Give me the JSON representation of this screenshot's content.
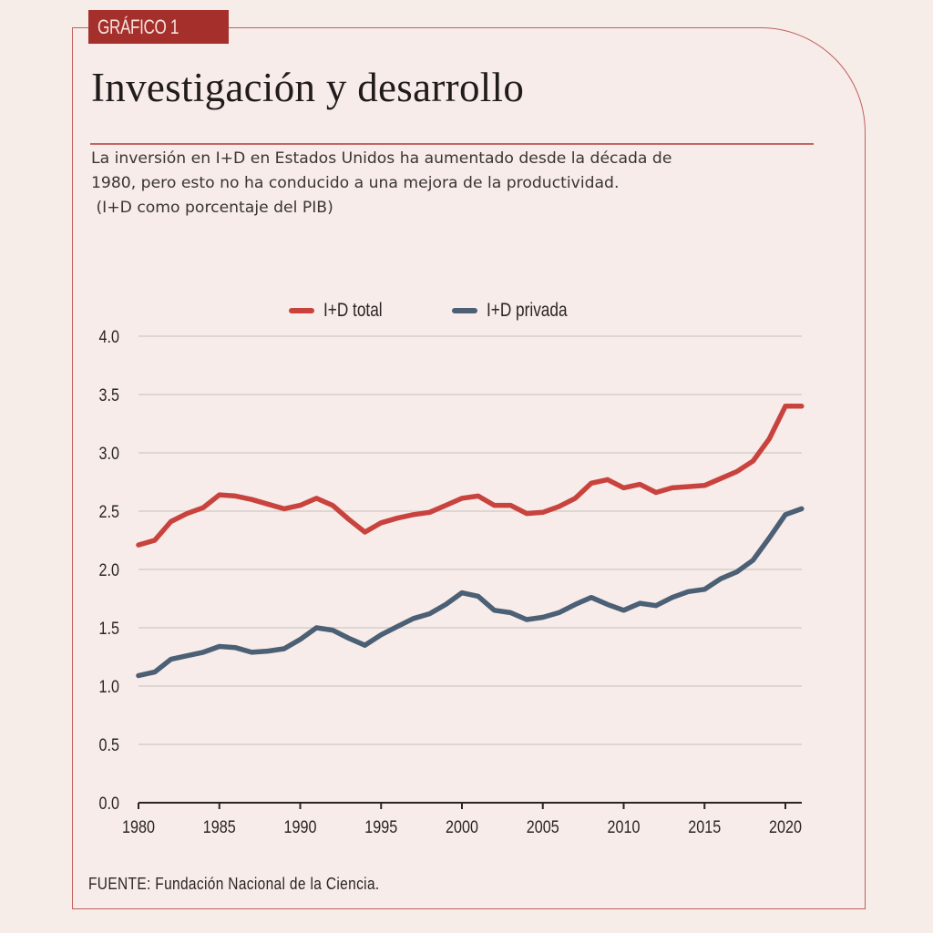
{
  "badge": "GRÁFICO 1",
  "title": "Investigación y desarrollo",
  "subtitle_lines": [
    "La inversión en I+D en Estados Unidos ha aumentado desde la década de",
    "1980, pero esto no ha conducido a una mejora de la productividad.",
    " (I+D como porcentaje del PIB)"
  ],
  "source": "FUENTE: Fundación Nacional de la Ciencia.",
  "colors": {
    "total": "#c9433e",
    "privada": "#4b5f75",
    "badge": "#a52f2b",
    "frame": "#c0605e",
    "grid": "#ddd6d3"
  },
  "chart_data": {
    "type": "line",
    "title": "Investigación y desarrollo",
    "xlabel": "",
    "ylabel": "I+D como porcentaje del PIB",
    "xlim": [
      1980,
      2021
    ],
    "ylim": [
      0,
      4.0
    ],
    "grid": true,
    "legend_position": "top-center",
    "x_ticks": [
      "1980",
      "1985",
      "1990",
      "1995",
      "2000",
      "2005",
      "2010",
      "2015",
      "2020"
    ],
    "y_ticks": [
      "0.0",
      "0.5",
      "1.0",
      "1.5",
      "2.0",
      "2.5",
      "3.0",
      "3.5",
      "4.0"
    ],
    "x": [
      1980,
      1981,
      1982,
      1983,
      1984,
      1985,
      1986,
      1987,
      1988,
      1989,
      1990,
      1991,
      1992,
      1993,
      1994,
      1995,
      1996,
      1997,
      1998,
      1999,
      2000,
      2001,
      2002,
      2003,
      2004,
      2005,
      2006,
      2007,
      2008,
      2009,
      2010,
      2011,
      2012,
      2013,
      2014,
      2015,
      2016,
      2017,
      2018,
      2019,
      2020,
      2021
    ],
    "series": [
      {
        "name": "I+D total",
        "key": "total",
        "values": [
          2.21,
          2.25,
          2.41,
          2.48,
          2.53,
          2.64,
          2.63,
          2.6,
          2.56,
          2.52,
          2.55,
          2.61,
          2.55,
          2.43,
          2.32,
          2.4,
          2.44,
          2.47,
          2.49,
          2.55,
          2.61,
          2.63,
          2.55,
          2.55,
          2.48,
          2.49,
          2.54,
          2.61,
          2.74,
          2.77,
          2.7,
          2.73,
          2.66,
          2.7,
          2.71,
          2.72,
          2.78,
          2.84,
          2.93,
          3.12,
          3.4,
          3.4
        ]
      },
      {
        "name": "I+D privada",
        "key": "privada",
        "values": [
          1.09,
          1.12,
          1.23,
          1.26,
          1.29,
          1.34,
          1.33,
          1.29,
          1.3,
          1.32,
          1.4,
          1.5,
          1.48,
          1.41,
          1.35,
          1.44,
          1.51,
          1.58,
          1.62,
          1.7,
          1.8,
          1.77,
          1.65,
          1.63,
          1.57,
          1.59,
          1.63,
          1.7,
          1.76,
          1.7,
          1.65,
          1.71,
          1.69,
          1.76,
          1.81,
          1.83,
          1.92,
          1.98,
          2.08,
          2.27,
          2.47,
          2.52
        ]
      }
    ]
  }
}
